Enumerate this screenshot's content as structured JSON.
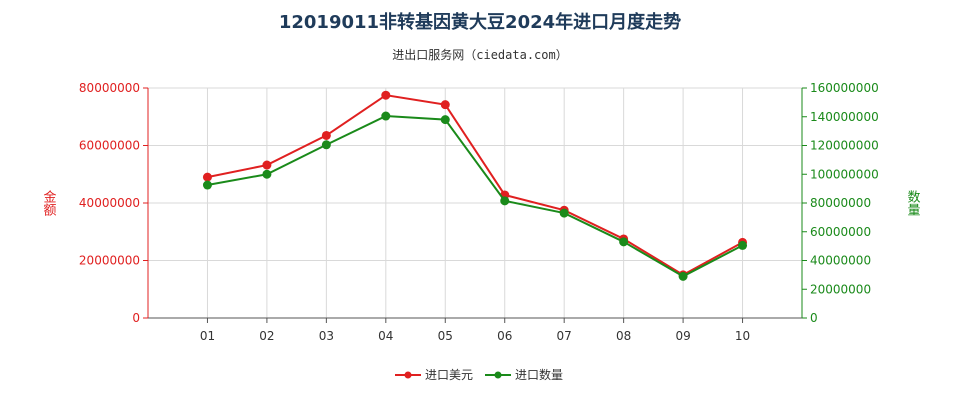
{
  "chart_data": {
    "type": "line",
    "title": "12019011非转基因黄大豆2024年进口月度走势",
    "subtitle": "进出口服务网（ciedata.com）",
    "categories": [
      "01",
      "02",
      "03",
      "04",
      "05",
      "06",
      "07",
      "08",
      "09",
      "10"
    ],
    "y_left": {
      "label": "金额",
      "min": 0,
      "max": 80000000,
      "ticks": [
        "0",
        "20000000",
        "40000000",
        "60000000",
        "80000000"
      ],
      "color": "#e02020"
    },
    "y_right": {
      "label": "数量",
      "min": 0,
      "max": 160000000,
      "ticks": [
        "0",
        "20000000",
        "40000000",
        "60000000",
        "80000000",
        "100000000",
        "120000000",
        "140000000",
        "160000000"
      ],
      "color": "#1a8a1a"
    },
    "series": [
      {
        "name": "进口美元",
        "axis": "left",
        "color": "#e02020",
        "values": [
          49000000,
          53200000,
          63500000,
          77500000,
          74200000,
          42800000,
          37500000,
          27500000,
          15000000,
          26300000
        ]
      },
      {
        "name": "进口数量",
        "axis": "right",
        "color": "#1a8a1a",
        "values": [
          92500000,
          100000000,
          120500000,
          140500000,
          138000000,
          81500000,
          73000000,
          53000000,
          29000000,
          50500000
        ]
      }
    ],
    "grid": true,
    "legend": "bottom-center"
  }
}
